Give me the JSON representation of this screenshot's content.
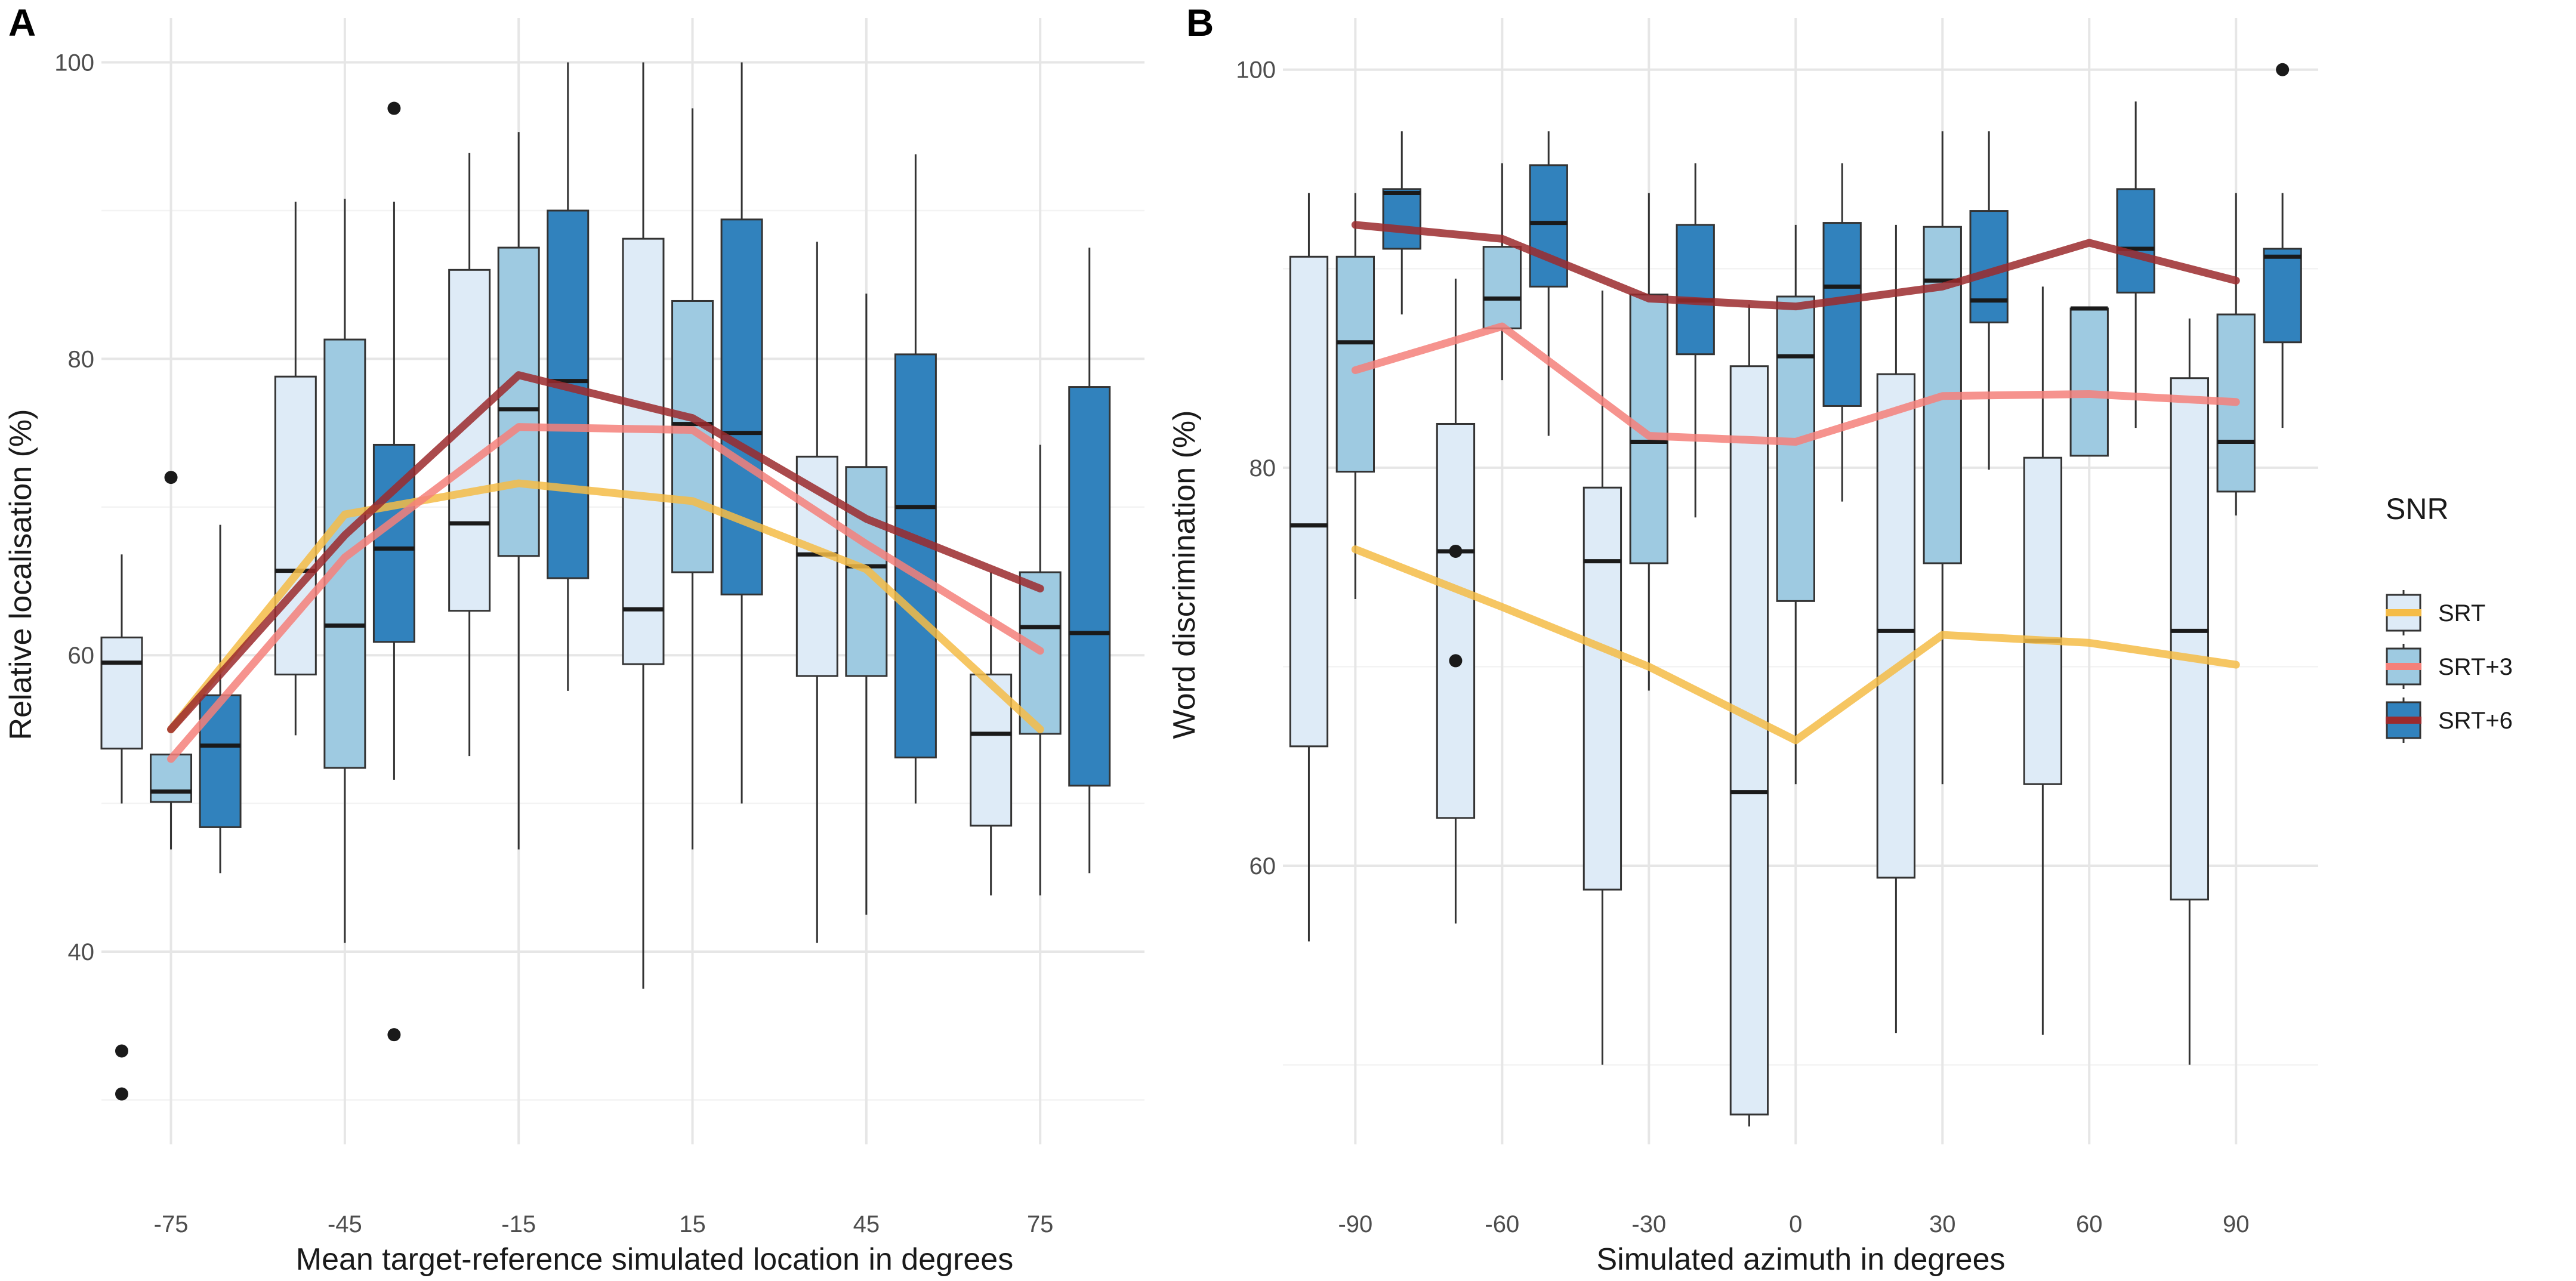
{
  "colors": {
    "box_fills": {
      "SRT": "#deebf7",
      "SRT+3": "#9ecae1",
      "SRT+6": "#3182bd"
    },
    "lines": {
      "SRT": "#f5bc47",
      "SRT+3": "#f4807a",
      "SRT+6": "#9b2a2d"
    }
  },
  "legend": {
    "title": "SNR",
    "items": [
      "SRT",
      "SRT+3",
      "SRT+6"
    ]
  },
  "chart_data": [
    {
      "panel": "A",
      "type": "box",
      "title": "",
      "xlabel": "Mean target-reference simulated location in degrees",
      "ylabel": "Relative localisation (%)",
      "x_ticks": [
        -75,
        -45,
        -15,
        15,
        45,
        75
      ],
      "x_tick_labels": [
        "-75",
        "-45",
        "-15",
        "15",
        "45",
        "75"
      ],
      "y_ticks": [
        40,
        60,
        80,
        100
      ],
      "y_tick_labels": [
        "40",
        "60",
        "80",
        "100"
      ],
      "xlim": [
        -87,
        93
      ],
      "ylim": [
        27,
        103
      ],
      "group_offset": 8.5,
      "box_width_units": 7,
      "series": [
        {
          "name": "SRT",
          "boxes": [
            {
              "x": -75,
              "min": 50,
              "q1": 53.7,
              "median": 59.5,
              "q3": 61.2,
              "max": 66.8,
              "outliers": [
                33.3,
                30.4
              ]
            },
            {
              "x": -45,
              "min": 54.6,
              "q1": 58.7,
              "median": 65.7,
              "q3": 78.8,
              "max": 90.6,
              "outliers": []
            },
            {
              "x": -15,
              "min": 53.2,
              "q1": 63,
              "median": 68.9,
              "q3": 86,
              "max": 93.9,
              "outliers": []
            },
            {
              "x": 15,
              "min": 37.5,
              "q1": 59.4,
              "median": 63.1,
              "q3": 88.1,
              "max": 100,
              "outliers": []
            },
            {
              "x": 45,
              "min": 40.6,
              "q1": 58.6,
              "median": 66.8,
              "q3": 73.4,
              "max": 87.9,
              "outliers": []
            },
            {
              "x": 75,
              "min": 43.8,
              "q1": 48.5,
              "median": 54.7,
              "q3": 58.7,
              "max": 65.6,
              "outliers": []
            }
          ],
          "line": [
            55,
            69.5,
            71.6,
            70.4,
            65.8,
            55
          ]
        },
        {
          "name": "SRT+3",
          "boxes": [
            {
              "x": -75,
              "min": 46.9,
              "q1": 50.1,
              "median": 50.8,
              "q3": 53.3,
              "max": 53.3,
              "outliers": [
                72
              ]
            },
            {
              "x": -45,
              "min": 40.6,
              "q1": 52.4,
              "median": 62,
              "q3": 81.3,
              "max": 90.8,
              "outliers": []
            },
            {
              "x": -15,
              "min": 46.9,
              "q1": 66.7,
              "median": 76.6,
              "q3": 87.5,
              "max": 95.3,
              "outliers": []
            },
            {
              "x": 15,
              "min": 46.9,
              "q1": 65.6,
              "median": 75.6,
              "q3": 83.9,
              "max": 96.9,
              "outliers": []
            },
            {
              "x": 45,
              "min": 42.5,
              "q1": 58.6,
              "median": 66,
              "q3": 72.7,
              "max": 84.4,
              "outliers": []
            },
            {
              "x": 75,
              "min": 43.8,
              "q1": 54.7,
              "median": 61.9,
              "q3": 65.6,
              "max": 74.2,
              "outliers": []
            }
          ],
          "line": [
            53,
            66.6,
            75.4,
            75.2,
            67.5,
            60.3
          ]
        },
        {
          "name": "SRT+6",
          "boxes": [
            {
              "x": -75,
              "min": 45.3,
              "q1": 48.4,
              "median": 53.9,
              "q3": 57.3,
              "max": 68.8,
              "outliers": []
            },
            {
              "x": -45,
              "min": 51.6,
              "q1": 60.9,
              "median": 67.2,
              "q3": 74.2,
              "max": 90.6,
              "outliers": [
                96.9,
                34.4
              ]
            },
            {
              "x": -15,
              "min": 57.6,
              "q1": 65.2,
              "median": 78.5,
              "q3": 90,
              "max": 100,
              "outliers": []
            },
            {
              "x": 15,
              "min": 50,
              "q1": 64.1,
              "median": 75,
              "q3": 89.4,
              "max": 100,
              "outliers": []
            },
            {
              "x": 45,
              "min": 50,
              "q1": 53.1,
              "median": 70,
              "q3": 80.3,
              "max": 93.8,
              "outliers": []
            },
            {
              "x": 75,
              "min": 45.3,
              "q1": 51.2,
              "median": 61.5,
              "q3": 78.1,
              "max": 87.5,
              "outliers": []
            }
          ],
          "line": [
            55,
            68.1,
            78.9,
            76,
            69.2,
            64.5
          ]
        }
      ]
    },
    {
      "panel": "B",
      "type": "box",
      "title": "",
      "xlabel": "Simulated azimuth in degrees",
      "ylabel": "Word discrimination (%)",
      "x_ticks": [
        -90,
        -60,
        -30,
        0,
        30,
        60,
        90
      ],
      "x_tick_labels": [
        "-90",
        "-60",
        "-30",
        "0",
        "30",
        "60",
        "90"
      ],
      "y_ticks": [
        60,
        80,
        100
      ],
      "y_tick_labels": [
        "60",
        "80",
        "100"
      ],
      "xlim": [
        -104.8,
        106.8
      ],
      "ylim": [
        46,
        102.6
      ],
      "group_offset": 9.5,
      "box_width_units": 7.6,
      "series": [
        {
          "name": "SRT",
          "boxes": [
            {
              "x": -90,
              "min": 56.2,
              "q1": 66,
              "median": 77.1,
              "q3": 90.6,
              "max": 93.8,
              "outliers": []
            },
            {
              "x": -60,
              "min": 57.1,
              "q1": 62.4,
              "median": 75.8,
              "q3": 82.2,
              "max": 89.5,
              "outliers": [
                75.8,
                70.3
              ]
            },
            {
              "x": -30,
              "min": 50,
              "q1": 58.8,
              "median": 75.3,
              "q3": 79,
              "max": 88.9,
              "outliers": []
            },
            {
              "x": 0,
              "min": 46.9,
              "q1": 47.5,
              "median": 63.7,
              "q3": 85.1,
              "max": 88.2,
              "outliers": []
            },
            {
              "x": 30,
              "min": 51.6,
              "q1": 59.4,
              "median": 71.8,
              "q3": 84.7,
              "max": 92.2,
              "outliers": []
            },
            {
              "x": 60,
              "min": 51.5,
              "q1": 64.1,
              "median": 71.3,
              "q3": 80.5,
              "max": 89.1,
              "outliers": []
            },
            {
              "x": 90,
              "min": 50,
              "q1": 58.3,
              "median": 71.8,
              "q3": 84.5,
              "max": 87.5,
              "outliers": []
            }
          ],
          "line": [
            75.9,
            73,
            70,
            66.3,
            71.6,
            71.2,
            70.1
          ]
        },
        {
          "name": "SRT+3",
          "boxes": [
            {
              "x": -90,
              "min": 73.4,
              "q1": 79.8,
              "median": 86.3,
              "q3": 90.6,
              "max": 93.8,
              "outliers": []
            },
            {
              "x": -60,
              "min": 84.4,
              "q1": 87,
              "median": 88.5,
              "q3": 91.1,
              "max": 95.3,
              "outliers": []
            },
            {
              "x": -30,
              "min": 68.8,
              "q1": 75.2,
              "median": 81.3,
              "q3": 88.7,
              "max": 93.8,
              "outliers": []
            },
            {
              "x": 0,
              "min": 64.1,
              "q1": 73.3,
              "median": 85.6,
              "q3": 88.6,
              "max": 92.2,
              "outliers": []
            },
            {
              "x": 30,
              "min": 64.1,
              "q1": 75.2,
              "median": 89.4,
              "q3": 92.1,
              "max": 96.9,
              "outliers": []
            },
            {
              "x": 60,
              "min": 80.6,
              "q1": 80.6,
              "median": 88,
              "q3": 88,
              "max": 88,
              "outliers": []
            },
            {
              "x": 90,
              "min": 77.6,
              "q1": 78.8,
              "median": 81.3,
              "q3": 87.7,
              "max": 93.8,
              "outliers": []
            }
          ],
          "line": [
            84.9,
            87.1,
            81.6,
            81.3,
            83.6,
            83.7,
            83.3
          ]
        },
        {
          "name": "SRT+6",
          "boxes": [
            {
              "x": -90,
              "min": 87.7,
              "q1": 91,
              "median": 93.8,
              "q3": 94,
              "max": 96.9,
              "outliers": []
            },
            {
              "x": -60,
              "min": 81.6,
              "q1": 89.1,
              "median": 92.3,
              "q3": 95.2,
              "max": 96.9,
              "outliers": []
            },
            {
              "x": -30,
              "min": 77.5,
              "q1": 85.7,
              "median": 88.4,
              "q3": 92.2,
              "max": 95.3,
              "outliers": []
            },
            {
              "x": 0,
              "min": 78.3,
              "q1": 83.1,
              "median": 89.1,
              "q3": 92.3,
              "max": 95.3,
              "outliers": []
            },
            {
              "x": 30,
              "min": 79.9,
              "q1": 87.3,
              "median": 88.4,
              "q3": 92.9,
              "max": 96.9,
              "outliers": []
            },
            {
              "x": 60,
              "min": 82,
              "q1": 88.8,
              "median": 91,
              "q3": 94,
              "max": 98.4,
              "outliers": []
            },
            {
              "x": 90,
              "min": 82,
              "q1": 86.3,
              "median": 90.6,
              "q3": 91,
              "max": 93.8,
              "outliers": [
                100
              ]
            }
          ],
          "line": [
            92.2,
            91.5,
            88.5,
            88.1,
            89.1,
            91.3,
            89.4
          ]
        }
      ]
    }
  ]
}
